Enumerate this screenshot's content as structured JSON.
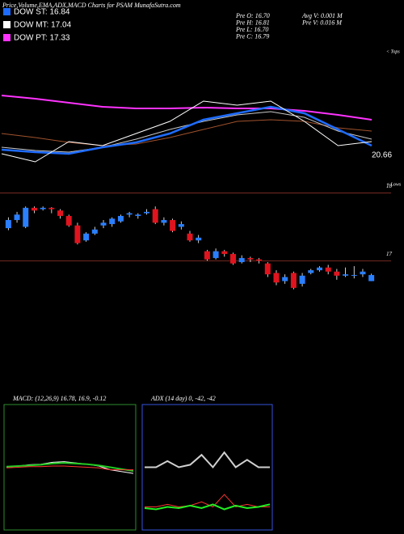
{
  "header": {
    "title": "Price,Volume,EMA,ADX,MACD Charts for PSAM MunafaSutra.com",
    "legend": [
      {
        "label": "DOW ST: 16.84",
        "color": "#1e6cff"
      },
      {
        "label": "DOW MT: 17.04",
        "color": "#ffffff"
      },
      {
        "label": "DOW PT: 17.33",
        "color": "#ff33ff"
      }
    ],
    "stats_left": [
      "Pre O: 16.70",
      "Pre H: 16.81",
      "Pre L: 16.70",
      "Pre C: 16.79"
    ],
    "stats_right": [
      "Avg V: 0.001 M",
      "Pre V: 0.016 M"
    ]
  },
  "chart_data": [
    {
      "type": "line",
      "top_note": "< Tops",
      "bottom_note": "< Lows",
      "last_label": "20.66",
      "ylim": [
        16,
        19.4
      ],
      "series": [
        {
          "color": "#ff33ff",
          "width": 2,
          "values": [
            18.24,
            18.16,
            18.06,
            17.96,
            17.92,
            17.92,
            17.94,
            17.92,
            17.92,
            17.86,
            17.76,
            17.64
          ]
        },
        {
          "color": "#a0522d",
          "width": 1,
          "values": [
            17.3,
            17.2,
            17.08,
            17.0,
            17.04,
            17.2,
            17.4,
            17.6,
            17.64,
            17.6,
            17.44,
            17.36
          ]
        },
        {
          "color": "#c8c8c8",
          "width": 1,
          "values": [
            16.96,
            16.88,
            16.84,
            16.96,
            17.16,
            17.4,
            17.6,
            17.76,
            17.84,
            17.7,
            17.36,
            17.16
          ]
        },
        {
          "color": "#1e6cff",
          "width": 2.5,
          "values": [
            16.9,
            16.84,
            16.8,
            16.96,
            17.08,
            17.3,
            17.64,
            17.8,
            17.96,
            17.8,
            17.4,
            17.0
          ]
        },
        {
          "color": "#ffffff",
          "width": 1,
          "values": [
            16.8,
            16.6,
            17.1,
            17.0,
            17.3,
            17.6,
            18.1,
            18.0,
            18.1,
            17.6,
            17.0,
            17.1
          ]
        }
      ]
    },
    {
      "type": "candlestick",
      "ylim": [
        15.12,
        18.1
      ],
      "yticks": [
        17,
        18
      ],
      "up_color": "#2a7fff",
      "down_color": "#e0141e",
      "open": [
        17.48,
        17.6,
        17.5,
        17.78,
        17.76,
        17.78,
        17.74,
        17.66,
        17.52,
        17.3,
        17.4,
        17.52,
        17.54,
        17.58,
        17.68,
        17.66,
        17.7,
        17.76,
        17.56,
        17.6,
        17.5,
        17.4,
        17.3,
        17.14,
        17.04,
        17.14,
        17.1,
        16.98,
        17.04,
        17.02,
        16.96,
        16.82,
        16.7,
        16.82,
        16.66,
        16.82,
        16.86,
        16.9,
        16.84,
        16.78,
        16.78,
        16.8,
        16.7
      ],
      "high": [
        17.64,
        17.72,
        17.8,
        17.8,
        17.8,
        17.79,
        17.76,
        17.68,
        17.56,
        17.42,
        17.5,
        17.6,
        17.64,
        17.68,
        17.72,
        17.7,
        17.76,
        17.8,
        17.64,
        17.62,
        17.58,
        17.44,
        17.38,
        17.16,
        17.18,
        17.16,
        17.12,
        17.08,
        17.06,
        17.04,
        16.98,
        16.86,
        16.8,
        16.84,
        16.82,
        16.88,
        16.92,
        16.94,
        16.88,
        16.9,
        16.92,
        16.88,
        16.81
      ],
      "low": [
        17.45,
        17.56,
        17.48,
        17.7,
        17.74,
        17.7,
        17.62,
        17.5,
        17.24,
        17.28,
        17.38,
        17.48,
        17.5,
        17.56,
        17.64,
        17.62,
        17.68,
        17.54,
        17.52,
        17.42,
        17.46,
        17.28,
        17.26,
        17.0,
        17.02,
        17.06,
        16.94,
        16.96,
        16.98,
        16.96,
        16.76,
        16.64,
        16.66,
        16.58,
        16.62,
        16.8,
        16.84,
        16.8,
        16.72,
        16.76,
        16.74,
        16.76,
        16.7
      ],
      "close": [
        17.6,
        17.68,
        17.78,
        17.74,
        17.78,
        17.76,
        17.66,
        17.52,
        17.26,
        17.4,
        17.46,
        17.56,
        17.62,
        17.66,
        17.7,
        17.68,
        17.72,
        17.56,
        17.6,
        17.44,
        17.54,
        17.3,
        17.34,
        17.02,
        17.14,
        17.1,
        16.96,
        17.04,
        17.02,
        17.0,
        16.8,
        16.68,
        16.76,
        16.6,
        16.78,
        16.86,
        16.9,
        16.84,
        16.78,
        16.8,
        16.79,
        16.84,
        16.79
      ]
    },
    {
      "type": "line",
      "title": "MACD: (12,26,9) 16.78, 16.9, -0.12",
      "border": "#2e8b2e",
      "ylim": [
        -1,
        1
      ],
      "series": [
        {
          "color": "#ffffff",
          "width": 1,
          "values": [
            0.0,
            0.02,
            0.04,
            0.05,
            0.08,
            0.09,
            0.07,
            0.05,
            0.02,
            -0.04,
            -0.07,
            -0.1
          ]
        },
        {
          "color": "#22cc22",
          "width": 2,
          "values": [
            0.01,
            0.02,
            0.03,
            0.04,
            0.06,
            0.07,
            0.06,
            0.05,
            0.03,
            0.0,
            -0.03,
            -0.06
          ]
        },
        {
          "color": "#ff3333",
          "width": 1,
          "values": [
            -0.01,
            0.0,
            0.01,
            0.01,
            0.02,
            0.02,
            0.01,
            0.0,
            -0.01,
            -0.04,
            -0.04,
            -0.04
          ]
        }
      ]
    },
    {
      "type": "line",
      "title": "ADX (14 day) 0, -42, -42",
      "border": "#3355dd",
      "ylim": [
        0,
        100
      ],
      "series": [
        {
          "color": "#d0d0d0",
          "width": 2,
          "values": [
            50,
            50,
            55,
            50,
            52,
            60,
            50,
            62,
            50,
            56,
            50,
            50
          ]
        },
        {
          "color": "#ff3333",
          "width": 1,
          "values": [
            18,
            18,
            20,
            18,
            19,
            22,
            18,
            28,
            18,
            20,
            18,
            18
          ]
        },
        {
          "color": "#22ee22",
          "width": 2,
          "values": [
            17,
            16,
            18,
            17,
            19,
            17,
            20,
            16,
            19,
            17,
            18,
            20
          ]
        }
      ]
    }
  ]
}
